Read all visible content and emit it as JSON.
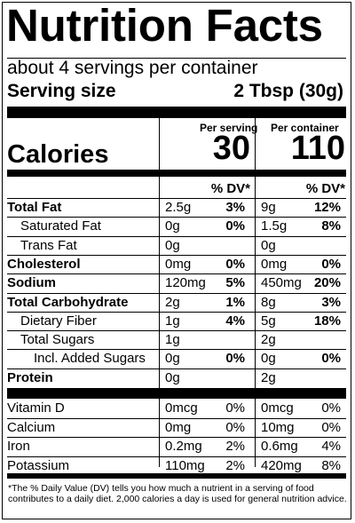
{
  "title": "Nutrition Facts",
  "servings_per_container": "about 4 servings per container",
  "serving_size_label": "Serving size",
  "serving_size_value": "2 Tbsp (30g)",
  "col_headers": {
    "per_serving": "Per serving",
    "per_container": "Per container"
  },
  "calories": {
    "label": "Calories",
    "per_serving": "30",
    "per_container": "110"
  },
  "dv_header": "% DV*",
  "nutrients": [
    {
      "name": "Total Fat",
      "bold": true,
      "indent": 0,
      "s_amt": "2.5g",
      "s_dv": "3%",
      "c_amt": "9g",
      "c_dv": "12%"
    },
    {
      "name": "Saturated Fat",
      "bold": false,
      "indent": 1,
      "s_amt": "0g",
      "s_dv": "0%",
      "c_amt": "1.5g",
      "c_dv": "8%"
    },
    {
      "name": "Trans Fat",
      "bold": false,
      "indent": 1,
      "s_amt": "0g",
      "s_dv": "",
      "c_amt": "0g",
      "c_dv": ""
    },
    {
      "name": "Cholesterol",
      "bold": true,
      "indent": 0,
      "s_amt": "0mg",
      "s_dv": "0%",
      "c_amt": "0mg",
      "c_dv": "0%"
    },
    {
      "name": "Sodium",
      "bold": true,
      "indent": 0,
      "s_amt": "120mg",
      "s_dv": "5%",
      "c_amt": "450mg",
      "c_dv": "20%"
    },
    {
      "name": "Total Carbohydrate",
      "bold": true,
      "indent": 0,
      "s_amt": "2g",
      "s_dv": "1%",
      "c_amt": "8g",
      "c_dv": "3%"
    },
    {
      "name": "Dietary Fiber",
      "bold": false,
      "indent": 1,
      "s_amt": "1g",
      "s_dv": "4%",
      "c_amt": "5g",
      "c_dv": "18%"
    },
    {
      "name": "Total Sugars",
      "bold": false,
      "indent": 1,
      "s_amt": "1g",
      "s_dv": "",
      "c_amt": "2g",
      "c_dv": ""
    },
    {
      "name": "Incl. Added Sugars",
      "bold": false,
      "indent": 2,
      "s_amt": "0g",
      "s_dv": "0%",
      "c_amt": "0g",
      "c_dv": "0%"
    },
    {
      "name": "Protein",
      "bold": true,
      "indent": 0,
      "s_amt": "0g",
      "s_dv": "",
      "c_amt": "2g",
      "c_dv": ""
    }
  ],
  "micros": [
    {
      "name": "Vitamin D",
      "s_amt": "0mcg",
      "s_dv": "0%",
      "c_amt": "0mcg",
      "c_dv": "0%"
    },
    {
      "name": "Calcium",
      "s_amt": "0mg",
      "s_dv": "0%",
      "c_amt": "10mg",
      "c_dv": "0%"
    },
    {
      "name": "Iron",
      "s_amt": "0.2mg",
      "s_dv": "2%",
      "c_amt": "0.6mg",
      "c_dv": "4%"
    },
    {
      "name": "Potassium",
      "s_amt": "110mg",
      "s_dv": "2%",
      "c_amt": "420mg",
      "c_dv": "8%"
    }
  ],
  "footnote": "*The % Daily Value (DV) tells you how much a nutrient in a serving of food contributes to a daily diet. 2,000 calories a day is used for general nutrition advice."
}
